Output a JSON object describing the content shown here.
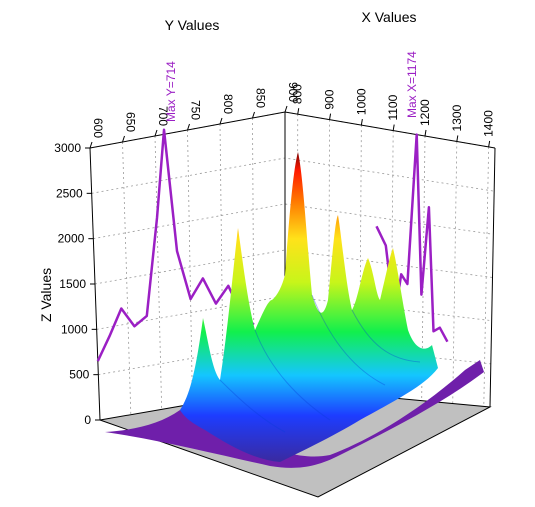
{
  "chart_data": {
    "type": "surface3d",
    "title": "",
    "xlabel": "X Values",
    "ylabel": "Y Values",
    "zlabel": "Z Values",
    "x_ticks": [
      "800",
      "900",
      "1000",
      "1100",
      "1200",
      "1300",
      "1400"
    ],
    "y_ticks": [
      "600",
      "650",
      "700",
      "750",
      "800",
      "850",
      "900"
    ],
    "z_ticks": [
      "0",
      "500",
      "1000",
      "1500",
      "2000",
      "2500",
      "3000"
    ],
    "xlim": [
      760,
      1420
    ],
    "ylim": [
      600,
      900
    ],
    "zlim": [
      0,
      3000
    ],
    "grid": true,
    "colormap": "rainbow",
    "floor_color": "#c0c0c0",
    "projection_color": "#9b1fc4",
    "annotations": {
      "max_y": "Max Y=714",
      "max_x": "Max X=1174"
    },
    "y_profile": {
      "y": [
        600,
        620,
        640,
        660,
        680,
        700,
        714,
        730,
        750,
        770,
        790,
        810,
        830,
        850
      ],
      "z": [
        650,
        900,
        1180,
        960,
        1050,
        2100,
        3050,
        1700,
        1150,
        1350,
        1050,
        1220,
        900,
        750
      ]
    },
    "x_profile": {
      "x": [
        1050,
        1080,
        1110,
        1130,
        1150,
        1174,
        1195,
        1215,
        1235,
        1255,
        1280
      ],
      "z": [
        1900,
        1700,
        900,
        1400,
        1300,
        3000,
        1200,
        2200,
        800,
        850,
        700
      ]
    }
  }
}
